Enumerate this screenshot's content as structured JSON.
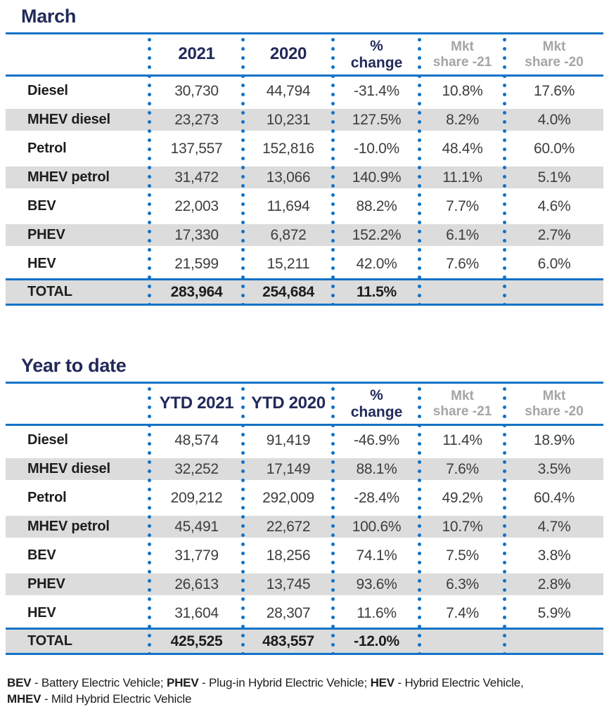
{
  "colors": {
    "title_navy": "#222a5a",
    "rule_blue": "#1273c7",
    "shade_gray": "#dcdcdc",
    "mkt_header_gray": "#a5a5a5",
    "value_text": "#3d3d3d"
  },
  "chart_data": [
    {
      "type": "table",
      "title": "March",
      "columns": [
        {
          "l1": "2021",
          "l2": ""
        },
        {
          "l1": "2020",
          "l2": ""
        },
        {
          "l1": "%",
          "l2": "change"
        },
        {
          "l1": "Mkt",
          "l2": "share -21"
        },
        {
          "l1": "Mkt",
          "l2": "share -20"
        }
      ],
      "rows": [
        {
          "label": "Diesel",
          "c1": "30,730",
          "c2": "44,794",
          "c3": "-31.4%",
          "c4": "10.8%",
          "c5": "17.6%"
        },
        {
          "label": "MHEV diesel",
          "c1": "23,273",
          "c2": "10,231",
          "c3": "127.5%",
          "c4": "8.2%",
          "c5": "4.0%"
        },
        {
          "label": "Petrol",
          "c1": "137,557",
          "c2": "152,816",
          "c3": "-10.0%",
          "c4": "48.4%",
          "c5": "60.0%"
        },
        {
          "label": "MHEV petrol",
          "c1": "31,472",
          "c2": "13,066",
          "c3": "140.9%",
          "c4": "11.1%",
          "c5": "5.1%"
        },
        {
          "label": "BEV",
          "c1": "22,003",
          "c2": "11,694",
          "c3": "88.2%",
          "c4": "7.7%",
          "c5": "4.6%"
        },
        {
          "label": "PHEV",
          "c1": "17,330",
          "c2": "6,872",
          "c3": "152.2%",
          "c4": "6.1%",
          "c5": "2.7%"
        },
        {
          "label": "HEV",
          "c1": "21,599",
          "c2": "15,211",
          "c3": "42.0%",
          "c4": "7.6%",
          "c5": "6.0%"
        }
      ],
      "total": {
        "label": "TOTAL",
        "c1": "283,964",
        "c2": "254,684",
        "c3": "11.5%",
        "c4": "",
        "c5": ""
      }
    },
    {
      "type": "table",
      "title": "Year to date",
      "columns": [
        {
          "l1": "YTD 2021",
          "l2": ""
        },
        {
          "l1": "YTD 2020",
          "l2": ""
        },
        {
          "l1": "%",
          "l2": "change"
        },
        {
          "l1": "Mkt",
          "l2": "share -21"
        },
        {
          "l1": "Mkt",
          "l2": "share -20"
        }
      ],
      "rows": [
        {
          "label": "Diesel",
          "c1": "48,574",
          "c2": "91,419",
          "c3": "-46.9%",
          "c4": "11.4%",
          "c5": "18.9%"
        },
        {
          "label": "MHEV diesel",
          "c1": "32,252",
          "c2": "17,149",
          "c3": "88.1%",
          "c4": "7.6%",
          "c5": "3.5%"
        },
        {
          "label": "Petrol",
          "c1": "209,212",
          "c2": "292,009",
          "c3": "-28.4%",
          "c4": "49.2%",
          "c5": "60.4%"
        },
        {
          "label": "MHEV petrol",
          "c1": "45,491",
          "c2": "22,672",
          "c3": "100.6%",
          "c4": "10.7%",
          "c5": "4.7%"
        },
        {
          "label": "BEV",
          "c1": "31,779",
          "c2": "18,256",
          "c3": "74.1%",
          "c4": "7.5%",
          "c5": "3.8%"
        },
        {
          "label": "PHEV",
          "c1": "26,613",
          "c2": "13,745",
          "c3": "93.6%",
          "c4": "6.3%",
          "c5": "2.8%"
        },
        {
          "label": "HEV",
          "c1": "31,604",
          "c2": "28,307",
          "c3": "11.6%",
          "c4": "7.4%",
          "c5": "5.9%"
        }
      ],
      "total": {
        "label": "TOTAL",
        "c1": "425,525",
        "c2": "483,557",
        "c3": "-12.0%",
        "c4": "",
        "c5": ""
      }
    }
  ],
  "footnote": {
    "line1": [
      {
        "t": "BEV",
        "b": true
      },
      {
        "t": " - Battery Electric Vehicle; ",
        "b": false
      },
      {
        "t": "PHEV",
        "b": true
      },
      {
        "t": " - Plug-in Hybrid Electric Vehicle; ",
        "b": false
      },
      {
        "t": "HEV",
        "b": true
      },
      {
        "t": " - Hybrid Electric Vehicle,",
        "b": false
      }
    ],
    "line2": [
      {
        "t": "MHEV",
        "b": true
      },
      {
        "t": " - Mild Hybrid Electric Vehicle",
        "b": false
      }
    ]
  }
}
